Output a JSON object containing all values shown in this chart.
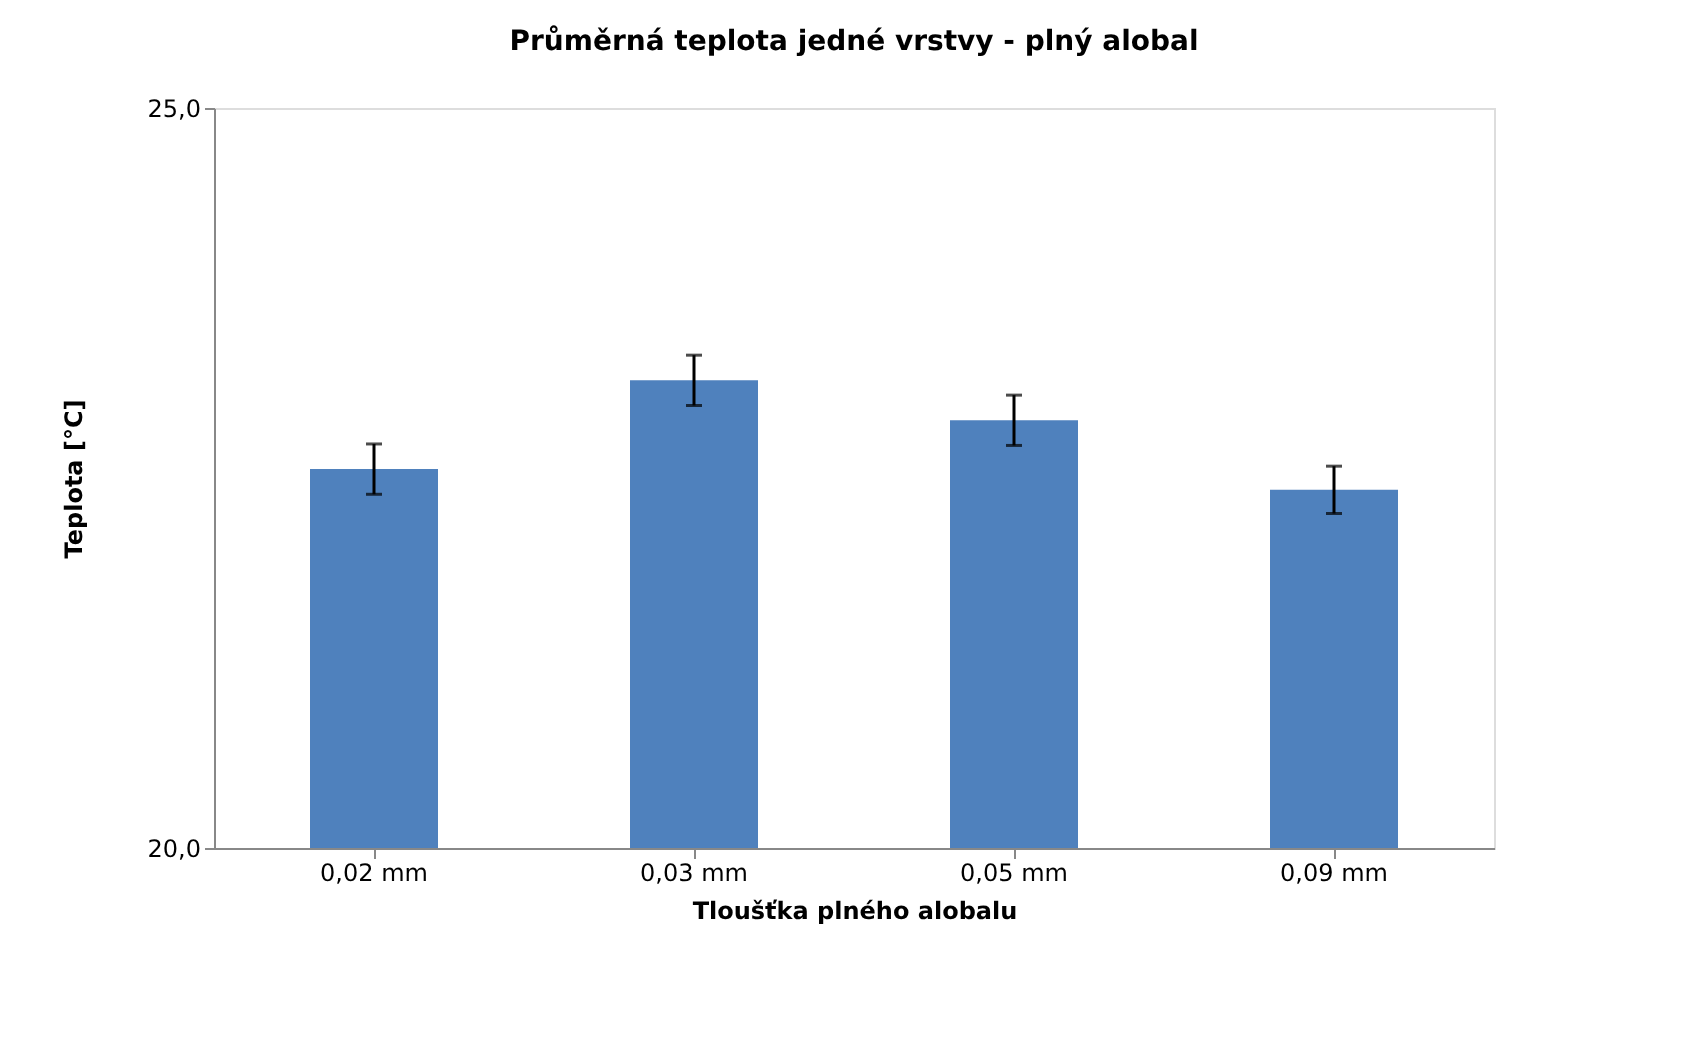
{
  "chart_data": {
    "type": "bar",
    "title": "Průměrná teplota jedné vrstvy - plný alobal",
    "xlabel": "Tloušťka plného alobalu",
    "ylabel": "Teplota [°C]",
    "categories": [
      "0,02 mm",
      "0,03 mm",
      "0,05 mm",
      "0,09 mm"
    ],
    "values": [
      22.56,
      23.16,
      22.89,
      22.42
    ],
    "errors": [
      0.17,
      0.17,
      0.17,
      0.16
    ],
    "color": "#4f81bd",
    "ylim": [
      20,
      25
    ],
    "yticks": [
      {
        "value": 20,
        "label": "20,0"
      },
      {
        "value": 25,
        "label": "25,0"
      }
    ],
    "grid": false
  }
}
